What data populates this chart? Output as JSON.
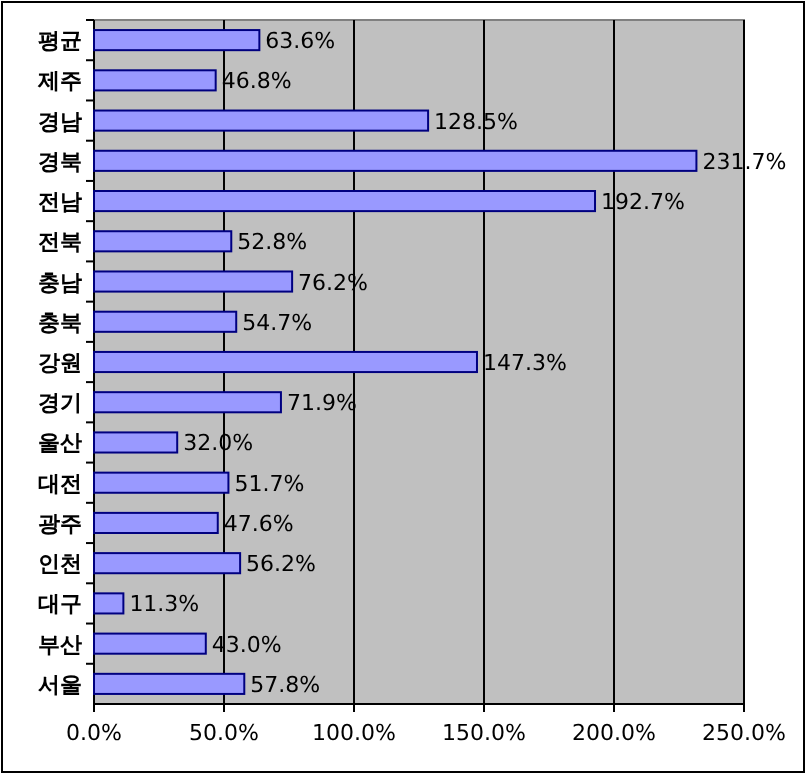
{
  "chart_data": {
    "type": "bar",
    "orientation": "horizontal",
    "categories": [
      "평균",
      "제주",
      "경남",
      "경북",
      "전남",
      "전북",
      "충남",
      "충북",
      "강원",
      "경기",
      "울산",
      "대전",
      "광주",
      "인천",
      "대구",
      "부산",
      "서울"
    ],
    "values": [
      63.6,
      46.8,
      128.5,
      231.7,
      192.7,
      52.8,
      76.2,
      54.7,
      147.3,
      71.9,
      32.0,
      51.7,
      47.6,
      56.2,
      11.3,
      43.0,
      57.8
    ],
    "value_labels": [
      "63.6%",
      "46.8%",
      "128.5%",
      "231.7%",
      "192.7%",
      "52.8%",
      "76.2%",
      "54.7%",
      "147.3%",
      "71.9%",
      "32.0%",
      "51.7%",
      "47.6%",
      "56.2%",
      "11.3%",
      "43.0%",
      "57.8%"
    ],
    "color": "#9999ff",
    "xlim": [
      0,
      250
    ],
    "xticks": [
      {
        "value": 0,
        "label": "0.0%"
      },
      {
        "value": 50,
        "label": "50.0%"
      },
      {
        "value": 100,
        "label": "100.0%"
      },
      {
        "value": 150,
        "label": "150.0%"
      },
      {
        "value": 200,
        "label": "200.0%"
      },
      {
        "value": 250,
        "label": "250.0%"
      }
    ],
    "grid": "x"
  }
}
